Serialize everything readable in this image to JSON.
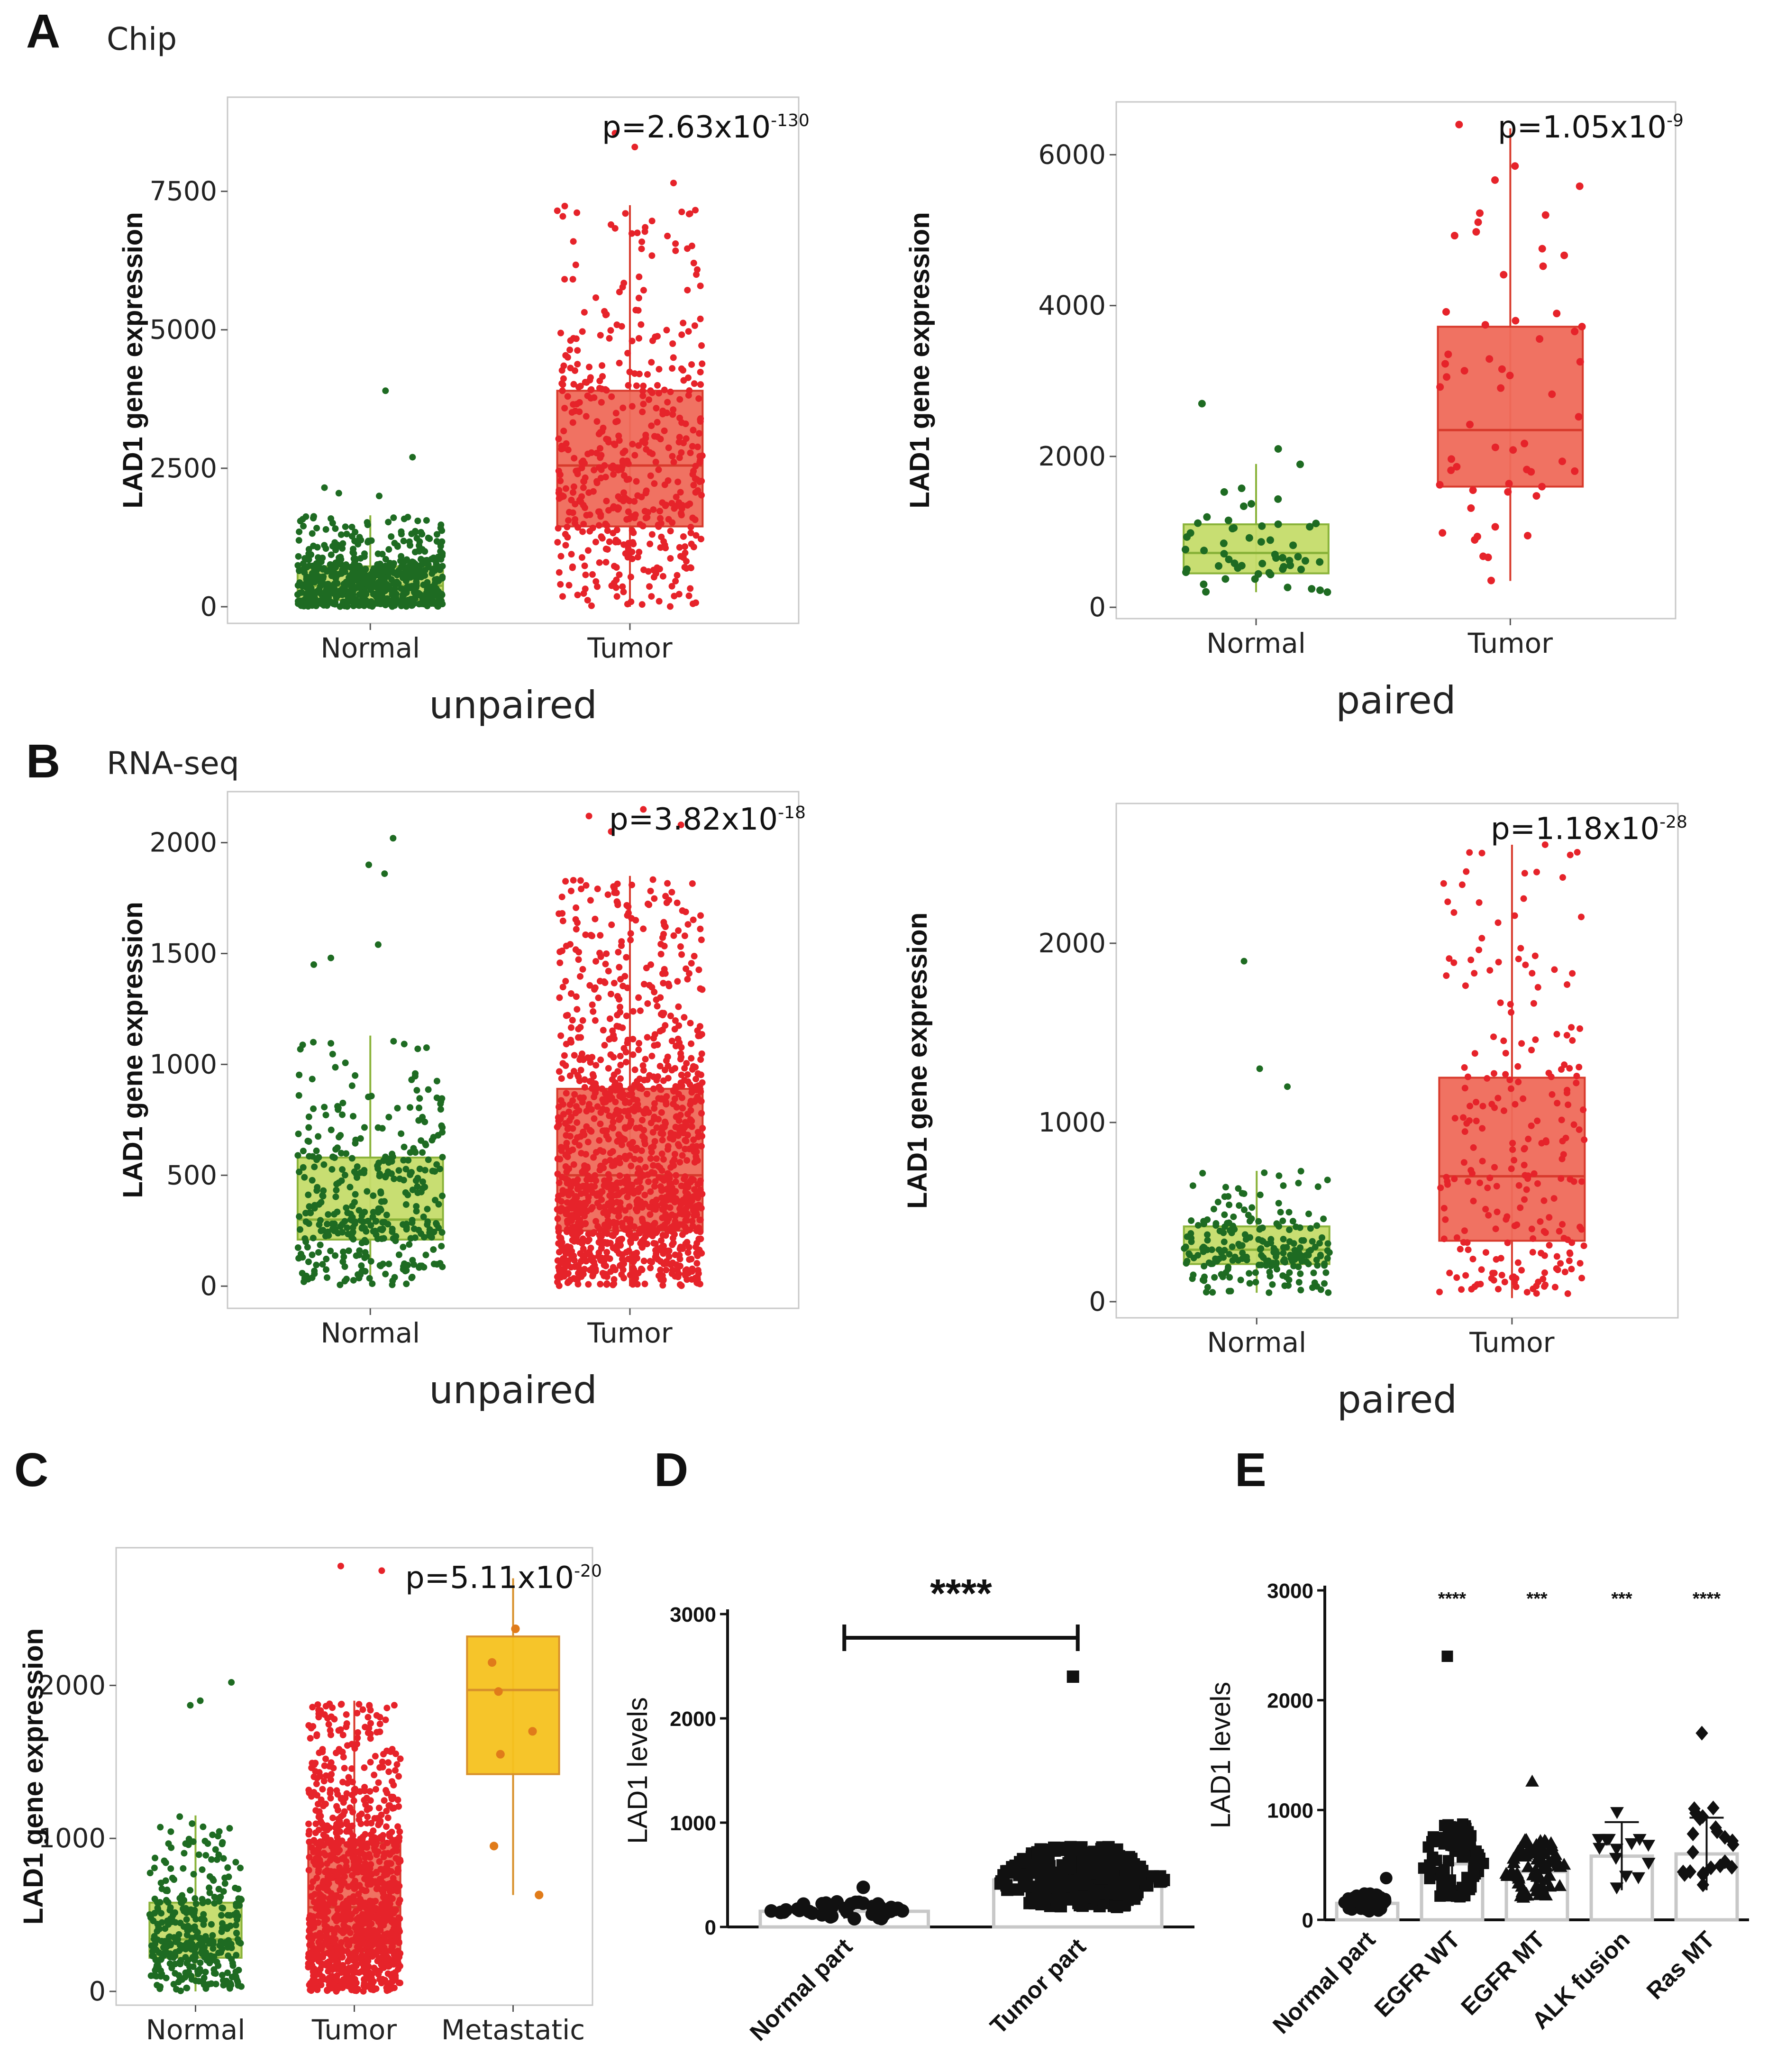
{
  "section_labels": {
    "a": "A",
    "b": "B",
    "c": "C",
    "d": "D",
    "e": "E"
  },
  "section_titles": {
    "a": "Chip",
    "b": "RNA-seq"
  },
  "chart_data": [
    {
      "id": "A-unpaired",
      "type": "box",
      "ylabel": "LAD1 gene expression",
      "xlabel": "unpaired",
      "categories": [
        "Normal",
        "Tumor"
      ],
      "yticks": [
        0,
        2500,
        5000,
        7500
      ],
      "ylim": [
        -300,
        9200
      ],
      "p_base": "p=2.63x10",
      "p_exp": "-130",
      "boxes": [
        {
          "name": "Normal",
          "q1": 120,
          "median": 380,
          "q3": 730,
          "whisker_low": 0,
          "whisker_high": 1650
        },
        {
          "name": "Tumor",
          "q1": 1450,
          "median": 2550,
          "q3": 3900,
          "whisker_low": 0,
          "whisker_high": 7250
        }
      ],
      "points": [
        {
          "name": "Normal",
          "n": 700,
          "outliers": [
            3900,
            2700,
            2150,
            2050,
            2000
          ]
        },
        {
          "name": "Tumor",
          "n": 500,
          "outliers": [
            8550,
            8300,
            7650
          ]
        }
      ]
    },
    {
      "id": "A-paired",
      "type": "box",
      "ylabel": "LAD1 gene expression",
      "xlabel": "paired",
      "categories": [
        "Normal",
        "Tumor"
      ],
      "yticks": [
        0,
        2000,
        4000,
        6000
      ],
      "ylim": [
        -150,
        6700
      ],
      "p_base": "p=1.05x10",
      "p_exp": "-9",
      "boxes": [
        {
          "name": "Normal",
          "q1": 450,
          "median": 720,
          "q3": 1100,
          "whisker_low": 200,
          "whisker_high": 1900
        },
        {
          "name": "Tumor",
          "q1": 1600,
          "median": 2350,
          "q3": 3720,
          "whisker_low": 350,
          "whisker_high": 6350
        }
      ],
      "points": [
        {
          "name": "Normal",
          "n": 55,
          "outliers": [
            2700,
            2100
          ]
        },
        {
          "name": "Tumor",
          "n": 55,
          "outliers": [
            6400,
            5850,
            5200
          ]
        }
      ]
    },
    {
      "id": "B-unpaired",
      "type": "box",
      "ylabel": "LAD1 gene expression",
      "xlabel": "unpaired",
      "categories": [
        "Normal",
        "Tumor"
      ],
      "yticks": [
        0,
        500,
        1000,
        1500,
        2000
      ],
      "ylim": [
        -100,
        2230
      ],
      "p_base": "p=3.82x10",
      "p_exp": "-18",
      "boxes": [
        {
          "name": "Normal",
          "q1": 210,
          "median": 300,
          "q3": 580,
          "whisker_low": 0,
          "whisker_high": 1130
        },
        {
          "name": "Tumor",
          "q1": 250,
          "median": 500,
          "q3": 890,
          "whisker_low": 0,
          "whisker_high": 1850
        }
      ],
      "points": [
        {
          "name": "Normal",
          "n": 380,
          "outliers": [
            2020,
            1900,
            1860,
            1540,
            1480,
            1450
          ]
        },
        {
          "name": "Tumor",
          "n": 1300,
          "outliers": [
            2150,
            2120,
            2080,
            2050
          ]
        }
      ]
    },
    {
      "id": "B-paired",
      "type": "box",
      "ylabel": "LAD1 gene expression",
      "xlabel": "paired",
      "categories": [
        "Normal",
        "Tumor"
      ],
      "yticks": [
        0,
        1000,
        2000
      ],
      "ylim": [
        -90,
        2780
      ],
      "p_base": "p=1.18x10",
      "p_exp": "-28",
      "boxes": [
        {
          "name": "Normal",
          "q1": 210,
          "median": 290,
          "q3": 420,
          "whisker_low": 50,
          "whisker_high": 730
        },
        {
          "name": "Tumor",
          "q1": 340,
          "median": 700,
          "q3": 1250,
          "whisker_low": 20,
          "whisker_high": 2550
        }
      ],
      "points": [
        {
          "name": "Normal",
          "n": 230,
          "outliers": [
            1900,
            1300,
            1200
          ]
        },
        {
          "name": "Tumor",
          "n": 230,
          "outliers": [
            2550,
            2400
          ]
        }
      ]
    },
    {
      "id": "C",
      "type": "box",
      "ylabel": "LAD1 gene expression",
      "xlabel": "",
      "categories": [
        "Normal",
        "Tumor",
        "Metastatic"
      ],
      "yticks": [
        0,
        1000,
        2000
      ],
      "ylim": [
        -90,
        2900
      ],
      "p_base": "p=5.11x10",
      "p_exp": "-20",
      "boxes": [
        {
          "name": "Normal",
          "q1": 220,
          "median": 340,
          "q3": 580,
          "whisker_low": 0,
          "whisker_high": 1150
        },
        {
          "name": "Tumor",
          "q1": 260,
          "median": 550,
          "q3": 970,
          "whisker_low": 0,
          "whisker_high": 1900
        },
        {
          "name": "Metastatic",
          "q1": 1420,
          "median": 1970,
          "q3": 2320,
          "whisker_low": 630,
          "whisker_high": 2700
        }
      ],
      "points": [
        {
          "name": "Normal",
          "n": 360,
          "outliers": [
            2020,
            1900,
            1870
          ]
        },
        {
          "name": "Tumor",
          "n": 1100,
          "outliers": [
            2780,
            2750
          ]
        },
        {
          "name": "Metastatic",
          "values": [
            2370,
            2150,
            1960,
            1700,
            1550,
            950,
            630
          ]
        }
      ]
    },
    {
      "id": "D",
      "type": "scatter-bar",
      "ylabel": "LAD1 levels",
      "categories": [
        "Normal part",
        "Tumor part"
      ],
      "yticks": [
        0,
        1000,
        2000,
        3000
      ],
      "ylim": [
        0,
        3000
      ],
      "means": [
        150,
        450
      ],
      "sd": [
        70,
        240
      ],
      "max_values": [
        380,
        2400
      ],
      "significance": "****"
    },
    {
      "id": "E",
      "type": "scatter-bar",
      "ylabel": "LAD1 levels",
      "categories": [
        "Normal part",
        "EGFR WT",
        "EGFR MT",
        "ALK fusion",
        "Ras MT"
      ],
      "yticks": [
        0,
        1000,
        2000,
        3000
      ],
      "ylim": [
        0,
        3000
      ],
      "means": [
        150,
        510,
        440,
        580,
        600
      ],
      "sd": [
        70,
        280,
        220,
        310,
        330
      ],
      "max_values": [
        380,
        2400,
        1260,
        980,
        1700
      ],
      "significance": [
        "",
        "****",
        "***",
        "***",
        "****"
      ]
    }
  ]
}
